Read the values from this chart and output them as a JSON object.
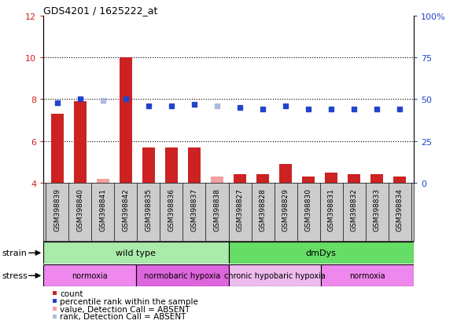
{
  "title": "GDS4201 / 1625222_at",
  "samples": [
    "GSM398839",
    "GSM398840",
    "GSM398841",
    "GSM398842",
    "GSM398835",
    "GSM398836",
    "GSM398837",
    "GSM398838",
    "GSM398827",
    "GSM398828",
    "GSM398829",
    "GSM398830",
    "GSM398831",
    "GSM398832",
    "GSM398833",
    "GSM398834"
  ],
  "count_values": [
    7.3,
    7.9,
    4.2,
    10.0,
    5.7,
    5.7,
    5.7,
    4.3,
    4.4,
    4.4,
    4.9,
    4.3,
    4.5,
    4.4,
    4.4,
    4.3
  ],
  "percentile_values": [
    48,
    50,
    49,
    50,
    46,
    46,
    47,
    46,
    45,
    44,
    46,
    44,
    44,
    44,
    44,
    44
  ],
  "absent_count": [
    false,
    false,
    true,
    false,
    false,
    false,
    false,
    true,
    false,
    false,
    false,
    false,
    false,
    false,
    false,
    false
  ],
  "absent_rank": [
    false,
    false,
    true,
    false,
    false,
    false,
    false,
    true,
    false,
    false,
    false,
    false,
    false,
    false,
    false,
    false
  ],
  "ylim_left": [
    4,
    12
  ],
  "ylim_right": [
    0,
    100
  ],
  "yticks_left": [
    4,
    6,
    8,
    10,
    12
  ],
  "yticks_right": [
    0,
    25,
    50,
    75,
    100
  ],
  "color_count": "#cc2222",
  "color_count_absent": "#f4a0a0",
  "color_rank": "#2244cc",
  "color_rank_absent": "#aabbdd",
  "strain_groups": [
    {
      "label": "wild type",
      "start": 0,
      "end": 8,
      "color": "#aaeaaa"
    },
    {
      "label": "dmDys",
      "start": 8,
      "end": 16,
      "color": "#66dd66"
    }
  ],
  "stress_groups": [
    {
      "label": "normoxia",
      "start": 0,
      "end": 4,
      "color": "#ee88ee"
    },
    {
      "label": "normobaric hypoxia",
      "start": 4,
      "end": 8,
      "color": "#dd66dd"
    },
    {
      "label": "chronic hypobaric hypoxia",
      "start": 8,
      "end": 12,
      "color": "#eebbee"
    },
    {
      "label": "normoxia",
      "start": 12,
      "end": 16,
      "color": "#ee88ee"
    }
  ],
  "bg_color": "#cccccc",
  "legend_items": [
    {
      "label": "count",
      "color": "#cc2222"
    },
    {
      "label": "percentile rank within the sample",
      "color": "#2244cc"
    },
    {
      "label": "value, Detection Call = ABSENT",
      "color": "#f4a0a0"
    },
    {
      "label": "rank, Detection Call = ABSENT",
      "color": "#aabbdd"
    }
  ]
}
